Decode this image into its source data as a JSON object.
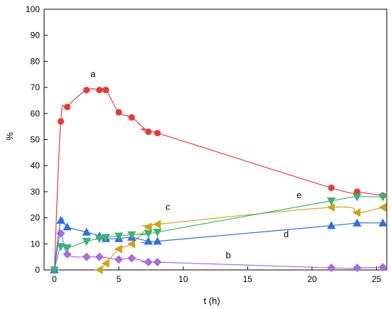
{
  "chart_data": {
    "type": "scatter",
    "title": "",
    "xlabel": "t (h)",
    "ylabel": "%",
    "xlim": [
      -0.8,
      25.8
    ],
    "ylim": [
      0,
      100
    ],
    "xticks": [
      0,
      5,
      10,
      15,
      20,
      25
    ],
    "yticks": [
      0,
      10,
      20,
      30,
      40,
      50,
      60,
      70,
      80,
      90,
      100
    ],
    "grid": false,
    "series": [
      {
        "name": "a",
        "color": "#e8383a",
        "marker": "circle",
        "x": [
          0,
          0.5,
          1,
          2.5,
          3.5,
          4,
          5,
          6,
          7.3,
          8,
          21.5,
          23.5,
          25.5
        ],
        "y": [
          0,
          57,
          62.5,
          69,
          69,
          69,
          60.5,
          58.5,
          53,
          52.5,
          31.5,
          30,
          28.5
        ]
      },
      {
        "name": "b",
        "color": "#a86be0",
        "marker": "diamond",
        "x": [
          0,
          0.5,
          1,
          2.5,
          3.5,
          5,
          6,
          7.3,
          8,
          21.5,
          23.5,
          25.5
        ],
        "y": [
          0,
          14,
          6,
          5,
          5,
          4,
          4.5,
          3,
          3,
          0.8,
          0.8,
          1
        ]
      },
      {
        "name": "c",
        "color": "#d4a017",
        "marker": "triangle-left",
        "x": [
          3.5,
          4,
          5,
          6,
          7.3,
          8,
          21.5,
          23.5,
          25.5
        ],
        "y": [
          0,
          2.5,
          8,
          10,
          16.5,
          17.5,
          24,
          22,
          24
        ]
      },
      {
        "name": "d",
        "color": "#2f6fe0",
        "marker": "triangle-up",
        "x": [
          0,
          0.5,
          1,
          2.5,
          3.5,
          4,
          5,
          6,
          7.3,
          8,
          21.5,
          23.5,
          25.5
        ],
        "y": [
          0,
          19,
          16.5,
          14.5,
          13,
          12,
          12,
          12.5,
          11,
          11,
          17,
          18,
          18
        ]
      },
      {
        "name": "e",
        "color": "#3cb371",
        "marker": "triangle-down",
        "x": [
          0,
          0.5,
          1,
          2.5,
          3.5,
          4,
          5,
          6,
          7.3,
          8,
          21.5,
          23.5,
          25.5
        ],
        "y": [
          0,
          9,
          8.5,
          11,
          12,
          12.5,
          13,
          13.5,
          14,
          14.5,
          26.5,
          28,
          28
        ]
      }
    ],
    "annotations": [
      {
        "text": "a",
        "x": 3,
        "y": 74
      },
      {
        "text": "b",
        "x": 13.5,
        "y": 4.5
      },
      {
        "text": "c",
        "x": 8.8,
        "y": 23
      },
      {
        "text": "d",
        "x": 18,
        "y": 12.5
      },
      {
        "text": "e",
        "x": 19,
        "y": 27.5
      }
    ]
  }
}
